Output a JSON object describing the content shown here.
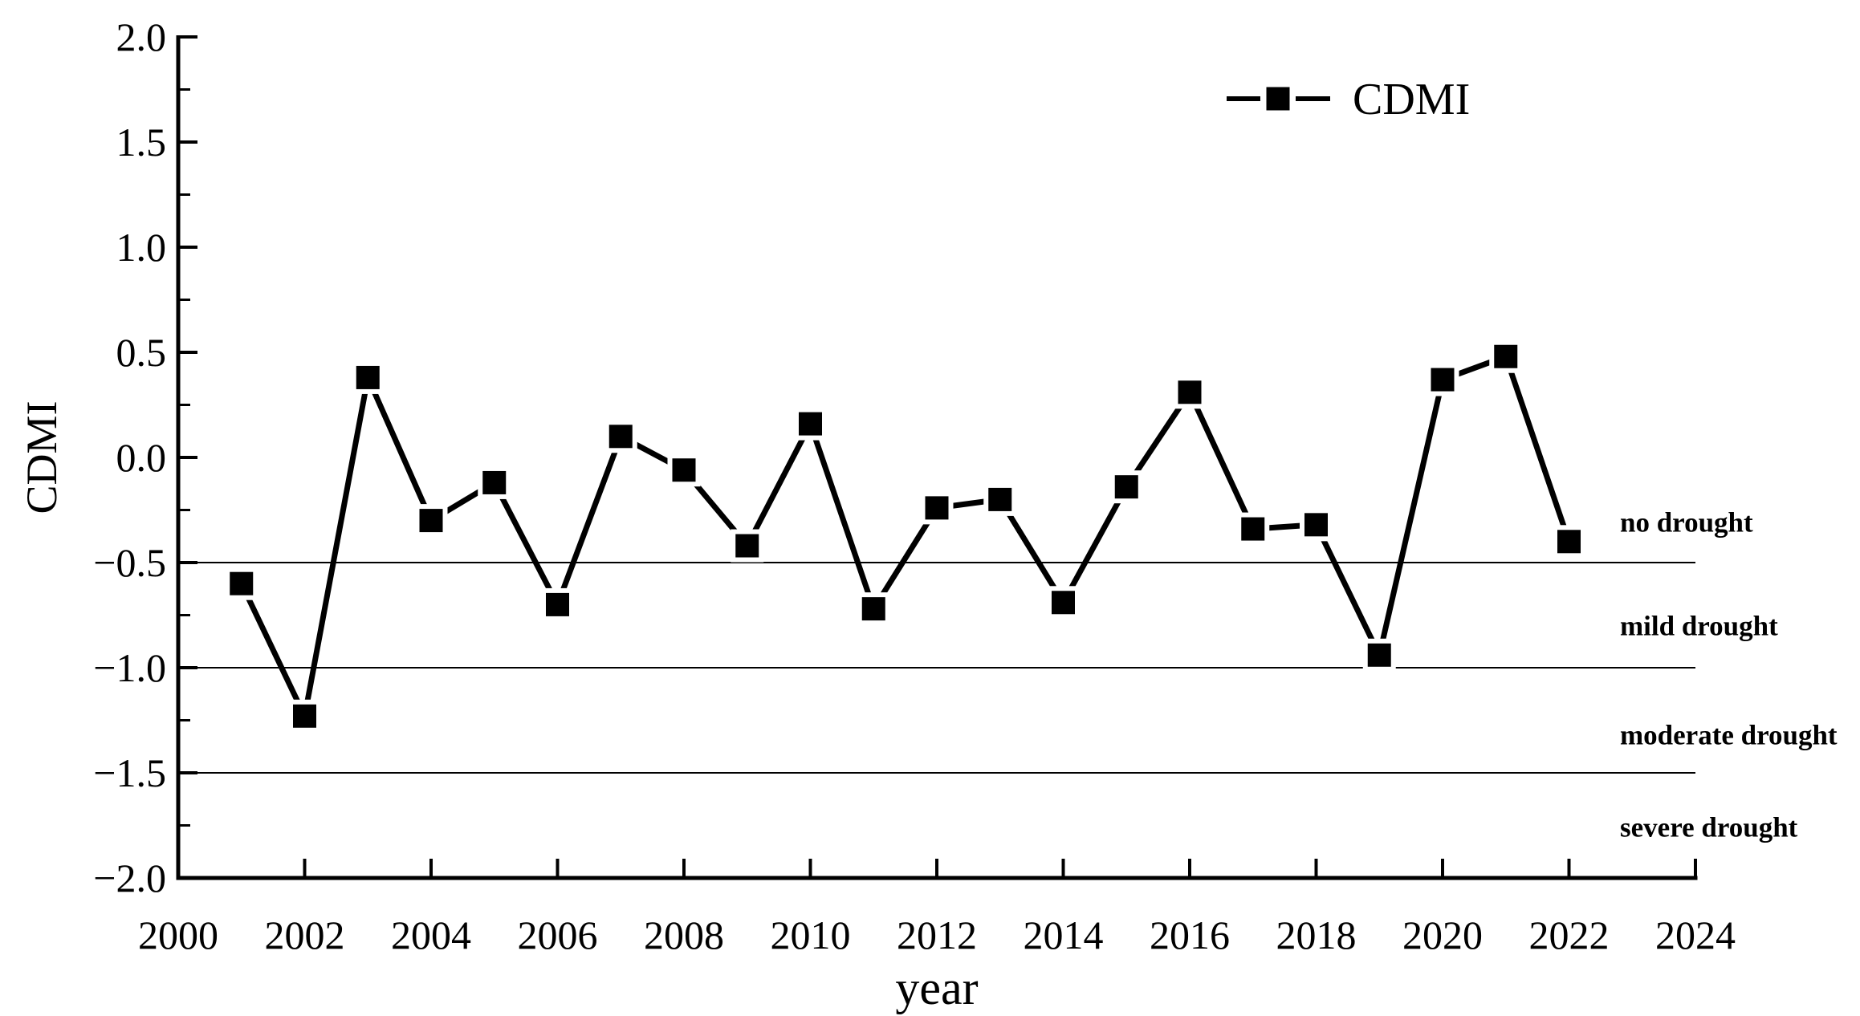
{
  "figure": {
    "background": "#ffffff",
    "ink_color": "#000000"
  },
  "axes": {
    "y_title": "CDMI",
    "x_title": "year"
  },
  "legend": {
    "label": "CDMI",
    "marker": "filled-square",
    "position": "top-right"
  },
  "chart_data": {
    "type": "line",
    "title": "",
    "xlabel": "year",
    "ylabel": "CDMI",
    "xlim": [
      2000,
      2024
    ],
    "ylim": [
      -2.0,
      2.0
    ],
    "grid": false,
    "x_tick_values": [
      2000,
      2002,
      2004,
      2006,
      2008,
      2010,
      2012,
      2014,
      2016,
      2018,
      2020,
      2022,
      2024
    ],
    "x_tick_labels": [
      "2000",
      "2002",
      "2004",
      "2006",
      "2008",
      "2010",
      "2012",
      "2014",
      "2016",
      "2018",
      "2020",
      "2022",
      "2024"
    ],
    "y_tick_values": [
      2.0,
      1.5,
      1.0,
      0.5,
      0.0,
      -0.5,
      -1.0,
      -1.5,
      -2.0
    ],
    "y_tick_labels": [
      "2.0",
      "1.5",
      "1.0",
      "0.5",
      "0.0",
      "−0.5",
      "−1.0",
      "−1.5",
      "−2.0"
    ],
    "y_minor_tick_step": 0.25,
    "series": [
      {
        "name": "CDMI",
        "color": "#000000",
        "marker": "square",
        "x": [
          2001,
          2002,
          2003,
          2004,
          2005,
          2006,
          2007,
          2008,
          2009,
          2010,
          2011,
          2012,
          2013,
          2014,
          2015,
          2016,
          2017,
          2018,
          2019,
          2020,
          2021,
          2022
        ],
        "y": [
          -0.6,
          -1.23,
          0.38,
          -0.3,
          -0.12,
          -0.7,
          0.1,
          -0.06,
          -0.42,
          0.16,
          -0.72,
          -0.24,
          -0.2,
          -0.69,
          -0.14,
          0.31,
          -0.34,
          -0.32,
          -0.94,
          0.37,
          0.48,
          -0.4
        ]
      }
    ],
    "reference_lines": [
      -0.5,
      -1.0,
      -1.5
    ],
    "zone_labels": [
      {
        "label": "no drought",
        "y": -0.31
      },
      {
        "label": "mild drought",
        "y": -0.8
      },
      {
        "label": "moderate drought",
        "y": -1.32
      },
      {
        "label": "severe drought",
        "y": -1.76
      }
    ]
  }
}
